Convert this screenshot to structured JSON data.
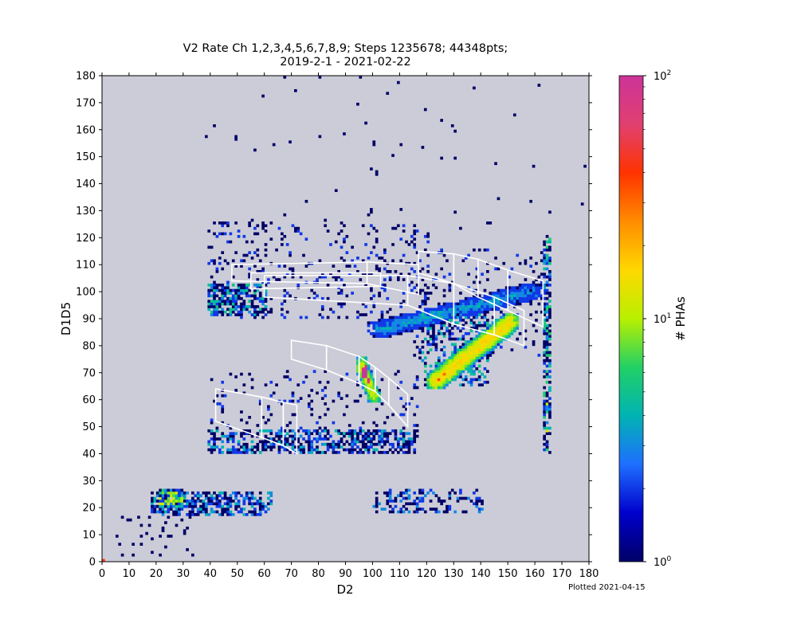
{
  "title_line1": "V2 Rate Ch 1,2,3,4,5,6,7,8,9; Steps 1235678; 44348pts;",
  "title_line2": "2019-2-1 - 2021-02-22",
  "footnote": "Plotted 2021-04-15",
  "colorbar": {
    "label": "# PHAs",
    "scale": "log",
    "ticks": [
      {
        "base": "10",
        "exp": "0",
        "value": 1
      },
      {
        "base": "10",
        "exp": "1",
        "value": 10
      },
      {
        "base": "10",
        "exp": "2",
        "value": 100
      }
    ],
    "colormap": [
      "#000066",
      "#0000cc",
      "#1f6fff",
      "#00b3b3",
      "#22d066",
      "#b8f000",
      "#ffd800",
      "#ff8c00",
      "#ff3300",
      "#e04070",
      "#cc3399"
    ]
  },
  "chart_data": {
    "type": "heatmap",
    "xlabel": "D2",
    "ylabel": "D1D5",
    "xlim": [
      0,
      180
    ],
    "ylim": [
      0,
      180
    ],
    "xticks": [
      0,
      10,
      20,
      30,
      40,
      50,
      60,
      70,
      80,
      90,
      100,
      110,
      120,
      130,
      140,
      150,
      160,
      170,
      180
    ],
    "yticks": [
      0,
      10,
      20,
      30,
      40,
      50,
      60,
      70,
      80,
      90,
      100,
      110,
      120,
      130,
      140,
      150,
      160,
      170,
      180
    ],
    "background_color": "#ccccd8",
    "overlay_color": "#ffffff",
    "clusters": [
      {
        "x": [
          18,
          62
        ],
        "y": [
          17,
          25
        ],
        "dens": 0.55,
        "max": 4
      },
      {
        "x": [
          21,
          29
        ],
        "y": [
          20,
          26
        ],
        "dens": 0.95,
        "max": 12
      },
      {
        "x": [
          100,
          140
        ],
        "y": [
          18,
          26
        ],
        "dens": 0.3,
        "max": 3
      },
      {
        "x": [
          5,
          36
        ],
        "y": [
          2,
          20
        ],
        "dens": 0.05,
        "max": 1
      },
      {
        "x": [
          39,
          60
        ],
        "y": [
          91,
          102
        ],
        "dens": 0.65,
        "max": 5
      },
      {
        "x": [
          39,
          120
        ],
        "y": [
          90,
          125
        ],
        "dens": 0.12,
        "max": 2
      },
      {
        "x": [
          39,
          116
        ],
        "y": [
          40,
          48
        ],
        "dens": 0.5,
        "max": 4
      },
      {
        "x": [
          40,
          116
        ],
        "y": [
          40,
          70
        ],
        "dens": 0.08,
        "max": 2
      },
      {
        "x": [
          118,
          142
        ],
        "y": [
          65,
          92
        ],
        "dens": 0.35,
        "max": 5
      },
      {
        "x": [
          115,
          165
        ],
        "y": [
          75,
          115
        ],
        "dens": 0.1,
        "max": 2
      },
      {
        "x": [
          163,
          165
        ],
        "y": [
          40,
          120
        ],
        "dens": 0.6,
        "max": 6
      },
      {
        "x": [
          30,
          180
        ],
        "y": [
          120,
          180
        ],
        "dens": 0.006,
        "max": 1
      }
    ],
    "ridges": [
      {
        "from": [
          122,
          66
        ],
        "to": [
          150,
          88
        ],
        "half_width": 2.5,
        "dens": 0.95,
        "max": 20
      },
      {
        "from": [
          95,
          73
        ],
        "to": [
          100,
          60
        ],
        "half_width": 1.5,
        "dens": 0.9,
        "max": 15
      },
      {
        "from": [
          100,
          85
        ],
        "to": [
          160,
          100
        ],
        "half_width": 2.5,
        "dens": 0.35,
        "max": 4
      }
    ],
    "hotspots": [
      {
        "x": 96,
        "y": 68,
        "value": 100
      },
      {
        "x": 97,
        "y": 68,
        "value": 100
      },
      {
        "x": 96,
        "y": 69,
        "value": 100
      },
      {
        "x": 97,
        "y": 69,
        "value": 100
      },
      {
        "x": 96,
        "y": 70,
        "value": 100
      },
      {
        "x": 97,
        "y": 70,
        "value": 100
      },
      {
        "x": 96,
        "y": 71,
        "value": 80
      },
      {
        "x": 97,
        "y": 71,
        "value": 100
      },
      {
        "x": 98,
        "y": 66,
        "value": 60
      },
      {
        "x": 98,
        "y": 67,
        "value": 90
      },
      {
        "x": 97,
        "y": 72,
        "value": 70
      },
      {
        "x": 25,
        "y": 22,
        "value": 15
      },
      {
        "x": 26,
        "y": 23,
        "value": 12
      },
      {
        "x": 164,
        "y": 48,
        "value": 14
      },
      {
        "x": 164,
        "y": 58,
        "value": 10
      },
      {
        "x": 124,
        "y": 67,
        "value": 35
      },
      {
        "x": 126,
        "y": 69,
        "value": 30
      },
      {
        "x": 0,
        "y": 0,
        "value": 40
      }
    ],
    "overlay_polygons": [
      [
        [
          42,
          64
        ],
        [
          59,
          61
        ],
        [
          59,
          46
        ],
        [
          42,
          52
        ]
      ],
      [
        [
          59,
          61
        ],
        [
          67,
          59
        ],
        [
          67,
          43
        ],
        [
          59,
          46
        ]
      ],
      [
        [
          67,
          59
        ],
        [
          72,
          58
        ],
        [
          72,
          40
        ],
        [
          67,
          43
        ]
      ],
      [
        [
          70,
          82
        ],
        [
          83,
          80
        ],
        [
          83,
          71
        ],
        [
          70,
          75
        ]
      ],
      [
        [
          83,
          80
        ],
        [
          95,
          76
        ],
        [
          95,
          66
        ],
        [
          83,
          71
        ]
      ],
      [
        [
          95,
          76
        ],
        [
          101,
          72
        ],
        [
          101,
          63
        ],
        [
          95,
          66
        ]
      ],
      [
        [
          101,
          72
        ],
        [
          106,
          68
        ],
        [
          106,
          58
        ],
        [
          101,
          63
        ]
      ],
      [
        [
          106,
          68
        ],
        [
          113,
          62
        ],
        [
          113,
          50
        ],
        [
          106,
          58
        ]
      ],
      [
        [
          48,
          110
        ],
        [
          98,
          111
        ],
        [
          98,
          103
        ],
        [
          48,
          104
        ]
      ],
      [
        [
          55,
          107
        ],
        [
          103,
          107
        ],
        [
          103,
          102
        ],
        [
          55,
          101
        ]
      ],
      [
        [
          60,
          106
        ],
        [
          113,
          106
        ],
        [
          113,
          95
        ],
        [
          60,
          98
        ]
      ],
      [
        [
          98,
          111
        ],
        [
          117,
          110
        ],
        [
          117,
          99
        ],
        [
          98,
          103
        ]
      ],
      [
        [
          117,
          115
        ],
        [
          130,
          114
        ],
        [
          130,
          103
        ],
        [
          117,
          107
        ]
      ],
      [
        [
          130,
          114
        ],
        [
          139,
          112
        ],
        [
          139,
          98
        ],
        [
          130,
          103
        ]
      ],
      [
        [
          139,
          112
        ],
        [
          150,
          108
        ],
        [
          150,
          93
        ],
        [
          139,
          98
        ]
      ],
      [
        [
          150,
          108
        ],
        [
          163,
          104
        ],
        [
          163,
          87
        ],
        [
          150,
          93
        ]
      ],
      [
        [
          113,
          106
        ],
        [
          130,
          103
        ],
        [
          130,
          88
        ],
        [
          113,
          95
        ]
      ],
      [
        [
          130,
          103
        ],
        [
          145,
          98
        ],
        [
          145,
          84
        ],
        [
          130,
          88
        ]
      ],
      [
        [
          145,
          98
        ],
        [
          156,
          93
        ],
        [
          156,
          80
        ],
        [
          145,
          84
        ]
      ]
    ]
  }
}
